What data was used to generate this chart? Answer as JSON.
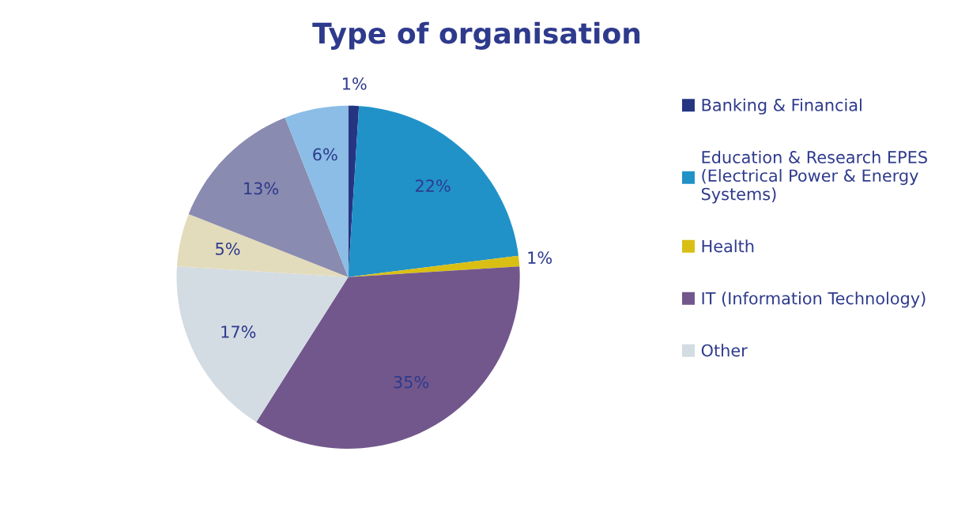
{
  "chart_data": {
    "type": "pie",
    "title": "Type of organisation",
    "categories": [
      "Banking & Financial",
      "Education & Research EPES\n(Electrical Power & Energy\nSystems)",
      "Health",
      "IT (Information Technology)",
      "Other",
      null,
      null,
      null
    ],
    "values": [
      1,
      22,
      1,
      35,
      17,
      5,
      13,
      6
    ],
    "colors": [
      "#253582",
      "#2092c8",
      "#d9bf14",
      "#72578c",
      "#d3dce3",
      "#e3dcbc",
      "#8a8bb0",
      "#8bbde6"
    ],
    "value_labels": [
      "1%",
      "22%",
      "1%",
      "35%",
      "17%",
      "5%",
      "13%",
      "6%"
    ],
    "legend": "right"
  }
}
